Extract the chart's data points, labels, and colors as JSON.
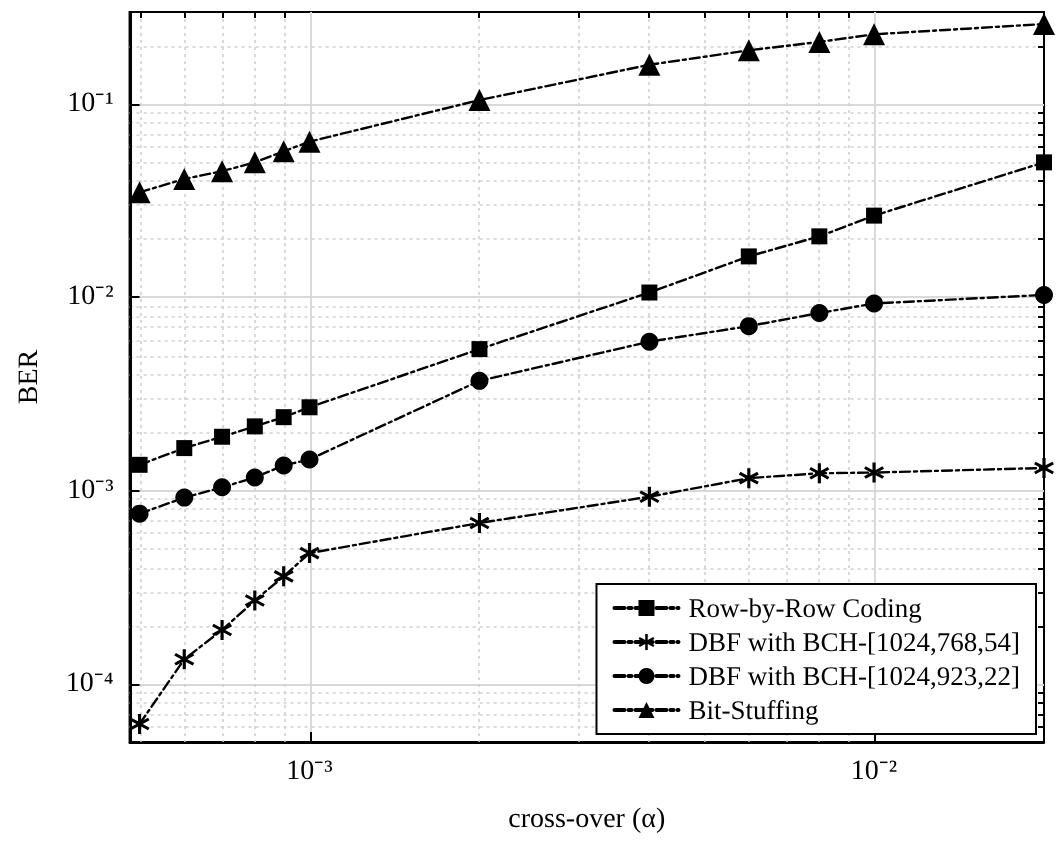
{
  "chart_data": {
    "type": "line",
    "xlabel": "cross-over (α)",
    "ylabel": "BER",
    "log": "xy",
    "grid": true,
    "legend": "bottom right",
    "line_style": "dashed",
    "x": [
      0.0005,
      0.0006,
      0.0007,
      0.0008,
      0.0009,
      0.001,
      0.002,
      0.004,
      0.006,
      0.008,
      0.01,
      0.02
    ],
    "series": [
      {
        "name": "Row-by-Row Coding",
        "color": "#000000",
        "marker": "square",
        "values": [
          0.00136,
          0.00166,
          0.0019,
          0.00215,
          0.0024,
          0.0027,
          0.0054,
          0.0106,
          0.0163,
          0.0207,
          0.0265,
          0.05
        ]
      },
      {
        "name": "DBF with BCH-[1024,768,54]",
        "color": "#000000",
        "marker": "star",
        "values": [
          6.2e-05,
          0.000134,
          0.00019,
          0.00027,
          0.00036,
          0.000475,
          0.00068,
          0.00093,
          0.00116,
          0.00123,
          0.00124,
          0.00131
        ]
      },
      {
        "name": "DBF with BCH-[1024,923,22]",
        "color": "#000000",
        "marker": "circle",
        "values": [
          0.00076,
          0.00092,
          0.00104,
          0.00117,
          0.00135,
          0.00145,
          0.0037,
          0.0059,
          0.0071,
          0.0083,
          0.0093,
          0.0103
        ]
      },
      {
        "name": "Bit-Stuffing",
        "color": "#000000",
        "marker": "triangle",
        "values": [
          0.035,
          0.041,
          0.045,
          0.05,
          0.057,
          0.064,
          0.105,
          0.16,
          0.19,
          0.21,
          0.23,
          0.26
        ]
      }
    ],
    "xlim": [
      0.00048,
      0.02
    ],
    "xticks": [
      {
        "value": 0.0005,
        "label": null
      },
      {
        "value": 0.0006,
        "label": null
      },
      {
        "value": 0.0007,
        "label": null
      },
      {
        "value": 0.0008,
        "label": null
      },
      {
        "value": 0.0009,
        "label": null
      },
      {
        "value": 0.001,
        "label": "10⁻³"
      },
      {
        "value": 0.002,
        "label": null
      },
      {
        "value": 0.003,
        "label": null
      },
      {
        "value": 0.004,
        "label": null
      },
      {
        "value": 0.005,
        "label": null
      },
      {
        "value": 0.006,
        "label": null
      },
      {
        "value": 0.007,
        "label": null
      },
      {
        "value": 0.008,
        "label": null
      },
      {
        "value": 0.009,
        "label": null
      },
      {
        "value": 0.01,
        "label": "10⁻²"
      }
    ],
    "ylim": [
      5e-05,
      0.3
    ],
    "yticks": [
      {
        "value": 6e-05,
        "label": null
      },
      {
        "value": 7e-05,
        "label": null
      },
      {
        "value": 8e-05,
        "label": null
      },
      {
        "value": 9e-05,
        "label": null
      },
      {
        "value": 0.0001,
        "label": "10⁻⁴"
      },
      {
        "value": 0.0002,
        "label": null
      },
      {
        "value": 0.0003,
        "label": null
      },
      {
        "value": 0.0004,
        "label": null
      },
      {
        "value": 0.0005,
        "label": null
      },
      {
        "value": 0.0006,
        "label": null
      },
      {
        "value": 0.0007,
        "label": null
      },
      {
        "value": 0.0008,
        "label": null
      },
      {
        "value": 0.0009,
        "label": null
      },
      {
        "value": 0.001,
        "label": "10⁻³"
      },
      {
        "value": 0.002,
        "label": null
      },
      {
        "value": 0.003,
        "label": null
      },
      {
        "value": 0.004,
        "label": null
      },
      {
        "value": 0.005,
        "label": null
      },
      {
        "value": 0.006,
        "label": null
      },
      {
        "value": 0.007,
        "label": null
      },
      {
        "value": 0.008,
        "label": null
      },
      {
        "value": 0.009,
        "label": null
      },
      {
        "value": 0.01,
        "label": "10⁻²"
      },
      {
        "value": 0.02,
        "label": null
      },
      {
        "value": 0.03,
        "label": null
      },
      {
        "value": 0.04,
        "label": null
      },
      {
        "value": 0.05,
        "label": null
      },
      {
        "value": 0.06,
        "label": null
      },
      {
        "value": 0.07,
        "label": null
      },
      {
        "value": 0.08,
        "label": null
      },
      {
        "value": 0.09,
        "label": null
      },
      {
        "value": 0.1,
        "label": "10⁻¹"
      },
      {
        "value": 0.2,
        "label": null
      }
    ]
  }
}
